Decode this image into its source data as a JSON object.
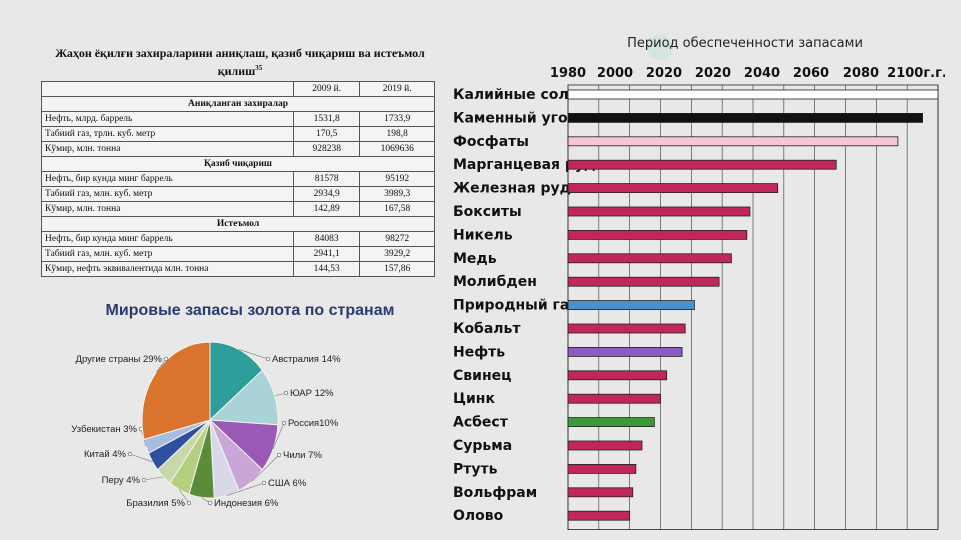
{
  "table": {
    "title_line1": "Жаҳон ёқилғи захираларини аниқлаш, қазиб чиқариш ва истеъмол",
    "title_line2": "қилиш",
    "title_sup": "35",
    "col_2009": "2009 й.",
    "col_2019": "2019 й.",
    "sections": [
      {
        "name": "Аниқланган захиралар",
        "rows": [
          {
            "label": "Нефть, млрд. баррель",
            "v2009": "1531,8",
            "v2019": "1733,9"
          },
          {
            "label": "Табиий газ, трлн. куб. метр",
            "v2009": "170,5",
            "v2019": "198,8"
          },
          {
            "label": "Кўмир, млн. тонна",
            "v2009": "928238",
            "v2019": "1069636"
          }
        ]
      },
      {
        "name": "Қазиб чиқариш",
        "rows": [
          {
            "label": "Нефть, бир кунда минг баррель",
            "v2009": "81578",
            "v2019": "95192"
          },
          {
            "label": "Табиий газ, млн. куб. метр",
            "v2009": "2934,9",
            "v2019": "3989,3"
          },
          {
            "label": "Кўмир, млн. тонна",
            "v2009": "142,89",
            "v2019": "167,58"
          }
        ]
      },
      {
        "name": "Истеъмол",
        "rows": [
          {
            "label": "Нефть, бир кунда минг баррель",
            "v2009": "84083",
            "v2019": "98272"
          },
          {
            "label": "Табиий газ, млн. куб. метр",
            "v2009": "2941,1",
            "v2019": "3929,2"
          },
          {
            "label": "Кўмир, нефть эквивалентида млн. тонна",
            "v2009": "144,53",
            "v2019": "157,86"
          }
        ]
      }
    ]
  },
  "chart_data": [
    {
      "type": "pie",
      "title": "Мировые запасы золота по странам",
      "slices": [
        {
          "label": "Австралия 14%",
          "value": 14,
          "color": "#2e9e9a"
        },
        {
          "label": "ЮАР 12%",
          "value": 12,
          "color": "#a9d3d8"
        },
        {
          "label": "Россия10%",
          "value": 10,
          "color": "#9b59b6"
        },
        {
          "label": "Чили 7%",
          "value": 7,
          "color": "#c9a6d8"
        },
        {
          "label": "США 6%",
          "value": 6,
          "color": "#d8d8e8"
        },
        {
          "label": "Индонезия 6%",
          "value": 6,
          "color": "#5b8c3a"
        },
        {
          "label": "Бразилия 5%",
          "value": 5,
          "color": "#b5cf80"
        },
        {
          "label": "Перу 4%",
          "value": 4,
          "color": "#c8d8a8"
        },
        {
          "label": "Китай 4%",
          "value": 4,
          "color": "#2f4fa0"
        },
        {
          "label": "Узбекистан 3%",
          "value": 3,
          "color": "#a8bce0"
        },
        {
          "label": "Другие страны 29%",
          "value": 29,
          "color": "#d9732e"
        }
      ]
    },
    {
      "type": "bar",
      "orientation": "horizontal",
      "title": "Период обеспеченности запасами",
      "tick_labels": [
        "1980",
        "2000",
        "2020",
        "2020",
        "2040",
        "2060",
        "2080",
        "2100г.г."
      ],
      "xlim": [
        1980,
        2100
      ],
      "categories": [
        "Калийные соли",
        "Каменный уголь",
        "Фосфаты",
        "Марганцевая руда",
        "Железная руда",
        "Бокситы",
        "Никель",
        "Медь",
        "Молибден",
        "Природный газ",
        "Кобальт",
        "Нефть",
        "Свинец",
        "Цинк",
        "Асбест",
        "Сурьма",
        "Ртуть",
        "Вольфрам",
        "Олово"
      ],
      "values": [
        2100,
        2095,
        2087,
        2067,
        2048,
        2039,
        2038,
        2033,
        2029,
        2021,
        2018,
        2017,
        2012,
        2010,
        2008,
        2004,
        2002,
        2001,
        2000
      ],
      "colors": [
        "#ffffff",
        "#111111",
        "#f4c6d6",
        "#c0285a",
        "#c0285a",
        "#c0285a",
        "#c0285a",
        "#c0285a",
        "#c0285a",
        "#4a8fd0",
        "#c0285a",
        "#8a5ac8",
        "#c0285a",
        "#c0285a",
        "#3a9a3a",
        "#c0285a",
        "#c0285a",
        "#c0285a",
        "#c0285a"
      ],
      "grid": true
    }
  ]
}
